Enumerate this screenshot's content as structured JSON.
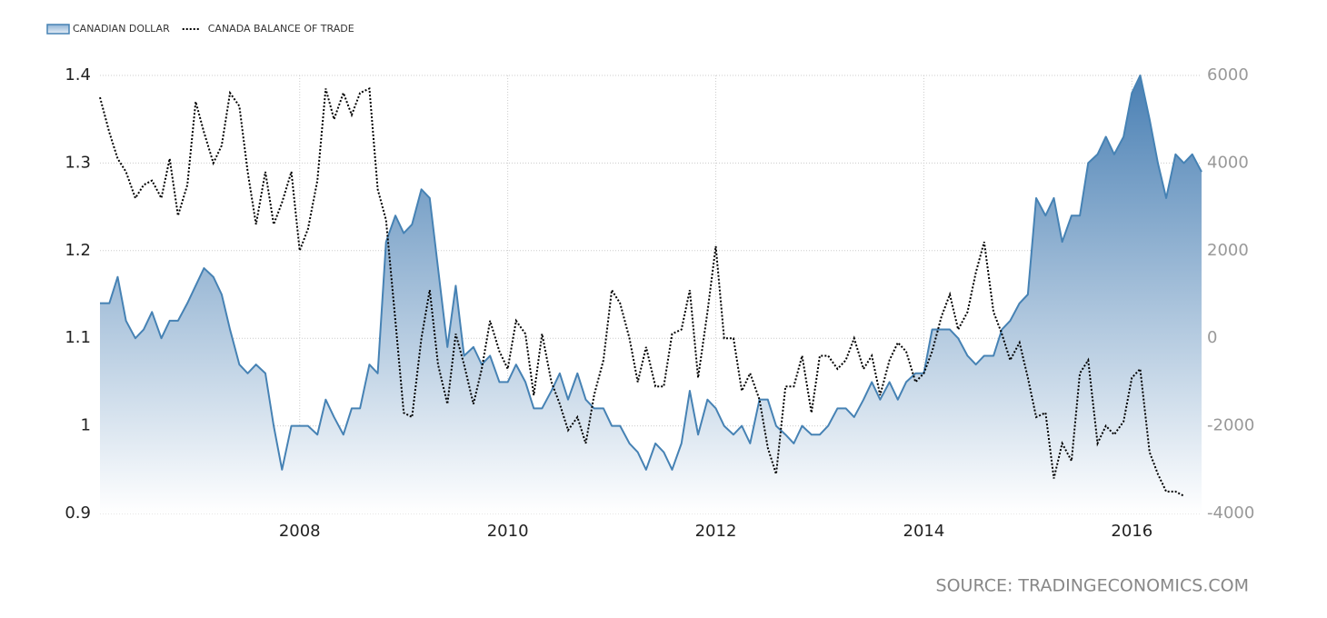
{
  "chart_data": {
    "type": "line",
    "source": "SOURCE: TRADINGECONOMICS.COM",
    "legend": "top-left",
    "grid": true,
    "x": [
      2006.08,
      2006.17,
      2006.25,
      2006.33,
      2006.42,
      2006.5,
      2006.58,
      2006.67,
      2006.75,
      2006.83,
      2006.92,
      2007,
      2007.08,
      2007.17,
      2007.25,
      2007.33,
      2007.42,
      2007.5,
      2007.58,
      2007.67,
      2007.75,
      2007.83,
      2007.92,
      2008,
      2008.08,
      2008.17,
      2008.25,
      2008.33,
      2008.42,
      2008.5,
      2008.58,
      2008.67,
      2008.75,
      2008.83,
      2008.92,
      2009,
      2009.08,
      2009.17,
      2009.25,
      2009.33,
      2009.42,
      2009.5,
      2009.58,
      2009.67,
      2009.75,
      2009.83,
      2009.92,
      2010,
      2010.08,
      2010.17,
      2010.25,
      2010.33,
      2010.42,
      2010.5,
      2010.58,
      2010.67,
      2010.75,
      2010.83,
      2010.92,
      2011,
      2011.08,
      2011.17,
      2011.25,
      2011.33,
      2011.42,
      2011.5,
      2011.58,
      2011.67,
      2011.75,
      2011.83,
      2011.92,
      2012,
      2012.08,
      2012.17,
      2012.25,
      2012.33,
      2012.42,
      2012.5,
      2012.58,
      2012.67,
      2012.75,
      2012.83,
      2012.92,
      2013,
      2013.08,
      2013.17,
      2013.25,
      2013.33,
      2013.42,
      2013.5,
      2013.58,
      2013.67,
      2013.75,
      2013.83,
      2013.92,
      2014,
      2014.08,
      2014.17,
      2014.25,
      2014.33,
      2014.42,
      2014.5,
      2014.58,
      2014.67,
      2014.75,
      2014.83,
      2014.92,
      2015,
      2015.08,
      2015.17,
      2015.25,
      2015.33,
      2015.42,
      2015.5,
      2015.58,
      2015.67,
      2015.75,
      2015.83,
      2015.92,
      2016,
      2016.08,
      2016.17,
      2016.25,
      2016.33,
      2016.42,
      2016.5,
      2016.58,
      2016.67
    ],
    "xlim": [
      2006.08,
      2016.67
    ],
    "xticks": [
      2008,
      2010,
      2012,
      2014,
      2016
    ],
    "ylim": [
      0.9,
      1.4
    ],
    "yticks": [
      0.9,
      1,
      1.1,
      1.2,
      1.3,
      1.4
    ],
    "y2lim": [
      -4000,
      6000
    ],
    "y2ticks": [
      -4000,
      -2000,
      0,
      2000,
      4000,
      6000
    ],
    "series": [
      {
        "name": "CANADIAN DOLLAR",
        "type": "area",
        "color": "#4682b4",
        "values": [
          1.14,
          1.14,
          1.17,
          1.12,
          1.1,
          1.11,
          1.13,
          1.1,
          1.12,
          1.12,
          1.14,
          1.16,
          1.18,
          1.17,
          1.15,
          1.11,
          1.07,
          1.06,
          1.07,
          1.06,
          1.0,
          0.95,
          1.0,
          1.0,
          1.0,
          0.99,
          1.03,
          1.01,
          0.99,
          1.02,
          1.02,
          1.07,
          1.06,
          1.21,
          1.24,
          1.22,
          1.23,
          1.27,
          1.26,
          1.18,
          1.09,
          1.16,
          1.08,
          1.09,
          1.07,
          1.08,
          1.05,
          1.05,
          1.07,
          1.05,
          1.02,
          1.02,
          1.04,
          1.06,
          1.03,
          1.06,
          1.03,
          1.02,
          1.02,
          1.0,
          1.0,
          0.98,
          0.97,
          0.95,
          0.98,
          0.97,
          0.95,
          0.98,
          1.04,
          0.99,
          1.03,
          1.02,
          1.0,
          0.99,
          1.0,
          0.98,
          1.03,
          1.03,
          1.0,
          0.99,
          0.98,
          1.0,
          0.99,
          0.99,
          1.0,
          1.02,
          1.02,
          1.01,
          1.03,
          1.05,
          1.03,
          1.05,
          1.03,
          1.05,
          1.06,
          1.06,
          1.11,
          1.11,
          1.11,
          1.1,
          1.08,
          1.07,
          1.08,
          1.08,
          1.11,
          1.12,
          1.14,
          1.15,
          1.26,
          1.24,
          1.26,
          1.21,
          1.24,
          1.24,
          1.3,
          1.31,
          1.33,
          1.31,
          1.33,
          1.38,
          1.4,
          1.35,
          1.3,
          1.26,
          1.31,
          1.3,
          1.31,
          1.29
        ]
      },
      {
        "name": "CANADA BALANCE OF TRADE",
        "type": "line",
        "color": "#000000",
        "axis": "y2",
        "values": [
          5500,
          4700,
          4100,
          3800,
          3200,
          3500,
          3600,
          3200,
          4100,
          2800,
          3500,
          5400,
          4700,
          4000,
          4400,
          5600,
          5300,
          3800,
          2600,
          3800,
          2600,
          3100,
          3800,
          2000,
          2500,
          3600,
          5700,
          5000,
          5600,
          5100,
          5600,
          5700,
          3400,
          2700,
          400,
          -1700,
          -1800,
          0,
          1100,
          -600,
          -1500,
          100,
          -600,
          -1500,
          -700,
          400,
          -300,
          -700,
          400,
          100,
          -1300,
          100,
          -1000,
          -1500,
          -2100,
          -1800,
          -2400,
          -1300,
          -500,
          1100,
          800,
          0,
          -1000,
          -200,
          -1100,
          -1100,
          100,
          200,
          1100,
          -900,
          600,
          2100,
          0,
          0,
          -1200,
          -800,
          -1400,
          -2500,
          -3100,
          -1100,
          -1100,
          -400,
          -1700,
          -400,
          -400,
          -700,
          -500,
          0,
          -700,
          -400,
          -1300,
          -500,
          -100,
          -300,
          -1000,
          -800,
          -300,
          500,
          1000,
          200,
          600,
          1500,
          2200,
          600,
          100,
          -500,
          -100,
          -900,
          -1800,
          -1700,
          -3200,
          -2400,
          -2800,
          -800,
          -500,
          -2400,
          -2000,
          -2200,
          -1900,
          -900,
          -700,
          -2600,
          -3100,
          -3500,
          -3500,
          -3600,
          null,
          null
        ]
      }
    ]
  }
}
